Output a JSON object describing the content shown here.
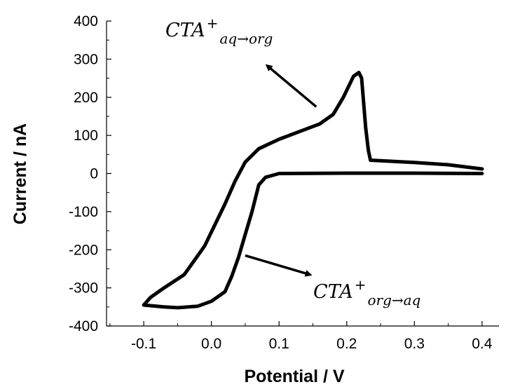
{
  "chart_data": {
    "type": "line",
    "title": "",
    "xlabel": "Potential / V",
    "ylabel": "Current / nA",
    "xlim": [
      -0.155,
      0.425
    ],
    "ylim": [
      -400,
      400
    ],
    "x_ticks": [
      -0.1,
      0.0,
      0.1,
      0.2,
      0.3,
      0.4
    ],
    "x_tick_labels": [
      "-0.1",
      "0.0",
      "0.1",
      "0.2",
      "0.3",
      "0.4"
    ],
    "y_ticks": [
      -400,
      -300,
      -200,
      -100,
      0,
      100,
      200,
      300,
      400
    ],
    "y_tick_labels": [
      "-400",
      "-300",
      "-200",
      "-100",
      "0",
      "100",
      "200",
      "300",
      "400"
    ],
    "grid": false,
    "line_color": "#000000",
    "series": [
      {
        "points": [
          [
            0.4,
            0
          ],
          [
            0.3,
            1
          ],
          [
            0.2,
            1
          ],
          [
            0.1,
            0
          ],
          [
            0.08,
            -10
          ],
          [
            0.07,
            -30
          ],
          [
            0.06,
            -100
          ],
          [
            0.05,
            -160
          ],
          [
            0.04,
            -220
          ],
          [
            0.03,
            -270
          ],
          [
            0.02,
            -310
          ],
          [
            0.0,
            -335
          ],
          [
            -0.02,
            -348
          ],
          [
            -0.05,
            -352
          ],
          [
            -0.07,
            -350
          ],
          [
            -0.1,
            -345
          ],
          [
            -0.09,
            -325
          ],
          [
            -0.07,
            -300
          ],
          [
            -0.04,
            -265
          ],
          [
            -0.01,
            -190
          ],
          [
            0.02,
            -80
          ],
          [
            0.035,
            -20
          ],
          [
            0.05,
            30
          ],
          [
            0.07,
            65
          ],
          [
            0.1,
            90
          ],
          [
            0.13,
            110
          ],
          [
            0.16,
            130
          ],
          [
            0.18,
            155
          ],
          [
            0.195,
            200
          ],
          [
            0.21,
            255
          ],
          [
            0.218,
            265
          ],
          [
            0.222,
            250
          ],
          [
            0.228,
            120
          ],
          [
            0.232,
            60
          ],
          [
            0.235,
            35
          ],
          [
            0.3,
            29
          ],
          [
            0.35,
            23
          ],
          [
            0.4,
            12
          ]
        ]
      }
    ],
    "annotations": [
      {
        "main": "CTA",
        "sup": "+",
        "sub": "aq→org",
        "arrow_from": [
          0.155,
          175
        ],
        "arrow_to": [
          0.083,
          282
        ]
      },
      {
        "main": "CTA",
        "sup": "+",
        "sub": "org→aq",
        "arrow_from": [
          0.05,
          -215
        ],
        "arrow_to": [
          0.145,
          -265
        ]
      }
    ]
  }
}
